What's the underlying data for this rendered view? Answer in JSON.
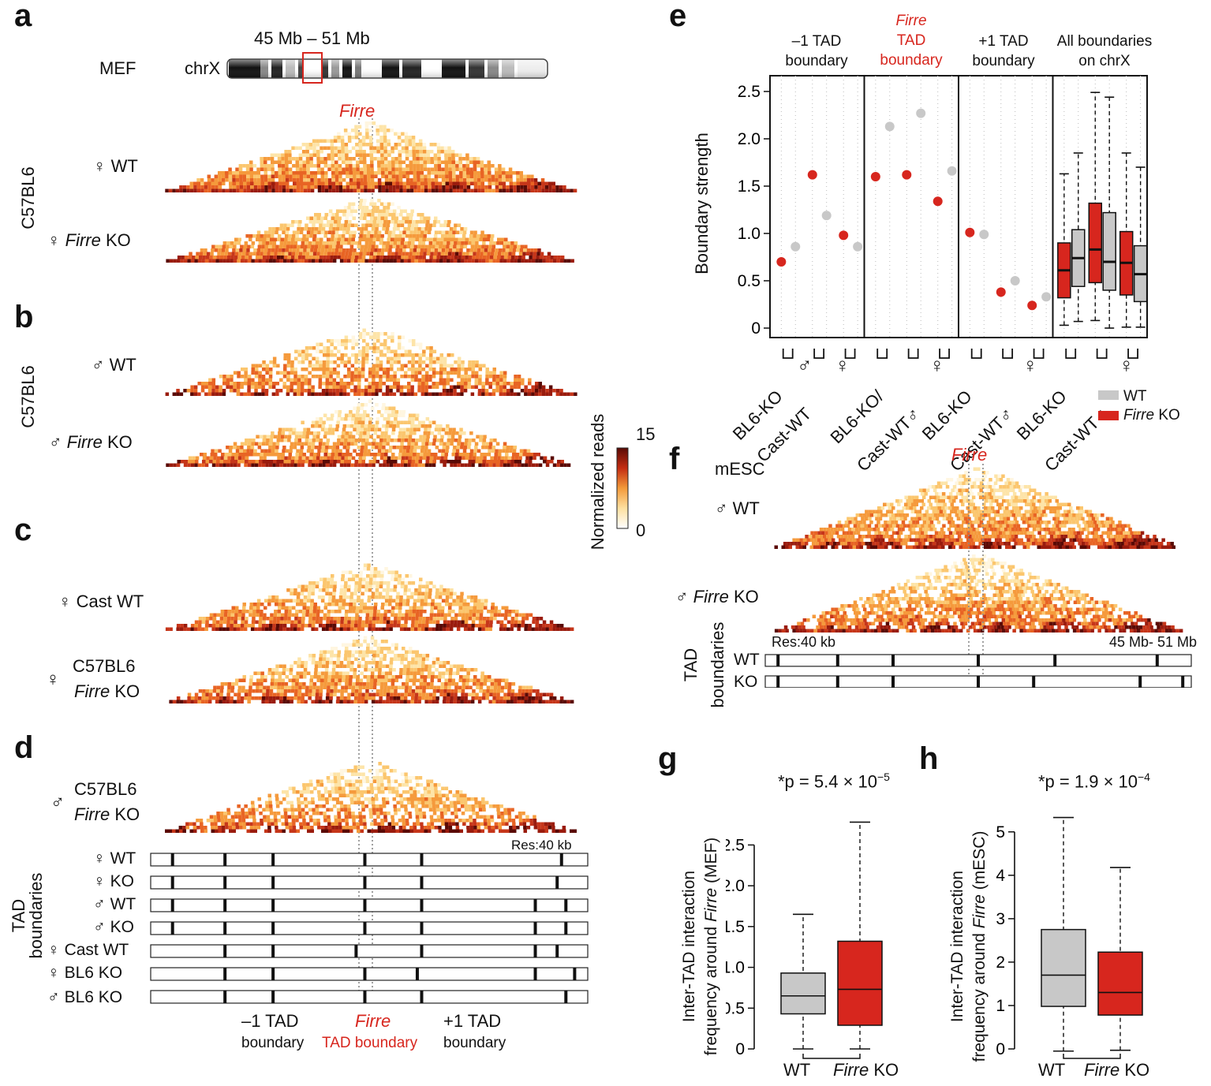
{
  "panels": {
    "a": "a",
    "b": "b",
    "c": "c",
    "d": "d",
    "e": "e",
    "f": "f",
    "g": "g",
    "h": "h"
  },
  "colors": {
    "wt": "#c8c8c8",
    "ko": "#d7261e",
    "firre": "#d7261e",
    "heat_low": "#ffffff",
    "heat_high": "#5a0a05"
  },
  "panel_a": {
    "region": "45 Mb – 51 Mb",
    "cell": "MEF",
    "chrom": "chrX",
    "firre": "Firre",
    "strain": "C57BL6",
    "wt_label": "♀ WT",
    "ko_sym": "♀",
    "ko_gene": "Firre",
    "ko_suffix": "KO"
  },
  "panel_b": {
    "strain": "C57BL6",
    "wt_label": "♂ WT",
    "ko_sym": "♂",
    "ko_gene": "Firre",
    "ko_suffix": "KO"
  },
  "colorbar": {
    "title": "Normalized reads",
    "max": "15",
    "min": "0"
  },
  "panel_c": {
    "cast_wt": "♀ Cast WT",
    "bl6_sym": "♀",
    "bl6": "C57BL6",
    "bl6_gene": "Firre",
    "bl6_suffix": "KO"
  },
  "panel_d": {
    "sym": "♂",
    "strain": "C57BL6",
    "gene": "Firre",
    "suffix": "KO",
    "res": "Res:40 kb",
    "side_label_1": "TAD",
    "side_label_2": "boundaries",
    "tracks": [
      {
        "label": "♀ WT"
      },
      {
        "label": "♀ KO"
      },
      {
        "label": "♂ WT"
      },
      {
        "label": "♂ KO"
      },
      {
        "label": "♀ Cast WT"
      },
      {
        "label": "♀ BL6 KO"
      },
      {
        "label": "♂ BL6 KO"
      }
    ],
    "bottom": {
      "minus1_a": "–1 TAD",
      "minus1_b": "boundary",
      "firre_a": "Firre",
      "firre_b": "TAD boundary",
      "plus1_a": "+1 TAD",
      "plus1_b": "boundary"
    }
  },
  "panel_e": {
    "headers": [
      {
        "l1": "–1 TAD",
        "l2": "boundary"
      },
      {
        "l0": "Firre",
        "l1": "TAD",
        "l2": "boundary"
      },
      {
        "l1": "+1 TAD",
        "l2": "boundary"
      },
      {
        "l1": "All boundaries",
        "l2": "on chrX"
      }
    ],
    "ylabel": "Boundary strength",
    "xlabels": [
      "BL6-KO",
      "Cast-WT",
      "♂",
      "♀"
    ],
    "xlabel_slash": "/",
    "legend": {
      "wt": "WT",
      "ko_gene": "Firre",
      "ko_suffix": "KO"
    }
  },
  "panel_f": {
    "cell": "mESC",
    "firre": "Firre",
    "wt_label": "♂ WT",
    "ko_sym": "♂",
    "ko_gene": "Firre",
    "ko_suffix": "KO",
    "res": "Res:40 kb",
    "range": "45 Mb- 51 Mb",
    "side_label_1": "TAD",
    "side_label_2": "boundaries",
    "track_wt": "WT",
    "track_ko": "KO"
  },
  "panel_g": {
    "pvalue": "*p = 5.4 × 10",
    "pexp": "−5",
    "ylabel_1": "Inter-TAD interaction",
    "ylabel_2": "frequency around",
    "ylabel_gene": "Firre",
    "ylabel_3": "(MEF)",
    "x_wt": "WT",
    "x_ko_gene": "Firre",
    "x_ko": "KO"
  },
  "panel_h": {
    "pvalue": "*p = 1.9 × 10",
    "pexp": "−4",
    "ylabel_1": "Inter-TAD interaction",
    "ylabel_2": "frequency around",
    "ylabel_gene": "Firre",
    "ylabel_3": "(mESC)",
    "x_wt": "WT",
    "x_ko_gene": "Firre",
    "x_ko": "KO"
  },
  "chart_data": [
    {
      "type": "scatter",
      "title": "Boundary strength (panel e)",
      "ylabel": "Boundary strength",
      "ylim": [
        0,
        2.5
      ],
      "yticks": [
        "0",
        "0.5",
        "1.0",
        "1.5",
        "2.0",
        "2.5"
      ],
      "groups": [
        "–1 TAD boundary",
        "Firre TAD boundary",
        "+1 TAD boundary"
      ],
      "categories": [
        "BL6-KO",
        "Cast-WT",
        "♂",
        "♀"
      ],
      "series": [
        {
          "name": "–1 TAD boundary",
          "points": [
            {
              "category": "BL6-KO",
              "genotype": "KO",
              "value": 0.7
            },
            {
              "category": "BL6-KO",
              "genotype": "WT",
              "value": 0.86
            },
            {
              "category": "Cast-WT",
              "genotype": "KO",
              "value": 1.62
            },
            {
              "category": "♂",
              "genotype": "WT",
              "value": 1.19
            },
            {
              "category": "♀",
              "genotype": "KO",
              "value": 0.98
            },
            {
              "category": "♀",
              "genotype": "WT",
              "value": 0.86
            }
          ]
        },
        {
          "name": "Firre TAD boundary",
          "points": [
            {
              "category": "BL6-KO",
              "genotype": "KO",
              "value": 1.6
            },
            {
              "category": "BL6-KO",
              "genotype": "WT",
              "value": 2.13
            },
            {
              "category": "Cast-WT",
              "genotype": "KO",
              "value": 1.62
            },
            {
              "category": "♂",
              "genotype": "WT",
              "value": 2.27
            },
            {
              "category": "♀",
              "genotype": "KO",
              "value": 1.34
            },
            {
              "category": "♀",
              "genotype": "WT",
              "value": 1.66
            }
          ]
        },
        {
          "name": "+1 TAD boundary",
          "points": [
            {
              "category": "BL6-KO",
              "genotype": "KO",
              "value": 1.01
            },
            {
              "category": "BL6-KO",
              "genotype": "WT",
              "value": 0.99
            },
            {
              "category": "Cast-WT",
              "genotype": "KO",
              "value": 0.38
            },
            {
              "category": "♂",
              "genotype": "WT",
              "value": 0.5
            },
            {
              "category": "♀",
              "genotype": "KO",
              "value": 0.24
            },
            {
              "category": "♀",
              "genotype": "WT",
              "value": 0.33
            }
          ]
        }
      ]
    },
    {
      "type": "box",
      "title": "All boundaries on chrX (panel e)",
      "ylim": [
        0,
        2.5
      ],
      "boxes": [
        {
          "category": "BL6-KO",
          "genotype": "KO",
          "min": 0.03,
          "q1": 0.32,
          "median": 0.61,
          "q3": 0.9,
          "max": 1.63
        },
        {
          "category": "BL6-KO",
          "genotype": "WT",
          "min": 0.07,
          "q1": 0.44,
          "median": 0.74,
          "q3": 1.04,
          "max": 1.85
        },
        {
          "category": "Cast-WT",
          "genotype": "KO",
          "min": 0.08,
          "q1": 0.48,
          "median": 0.83,
          "q3": 1.32,
          "max": 2.49
        },
        {
          "category": "Cast-WT",
          "genotype": "WT",
          "min": 0.0,
          "q1": 0.4,
          "median": 0.7,
          "q3": 1.22,
          "max": 2.44
        },
        {
          "category": "♀",
          "genotype": "KO",
          "min": 0.01,
          "q1": 0.35,
          "median": 0.69,
          "q3": 1.02,
          "max": 1.85
        },
        {
          "category": "♀",
          "genotype": "WT",
          "min": 0.01,
          "q1": 0.28,
          "median": 0.57,
          "q3": 0.87,
          "max": 1.7
        }
      ]
    },
    {
      "type": "box",
      "title": "Inter-TAD interaction frequency around Firre (MEF) (panel g)",
      "ylim": [
        0,
        2.8
      ],
      "yticks": [
        "0",
        "0.5",
        "1.0",
        "1.5",
        "2.0",
        "2.5"
      ],
      "boxes": [
        {
          "category": "WT",
          "min": 0.0,
          "q1": 0.43,
          "median": 0.65,
          "q3": 0.93,
          "max": 1.65
        },
        {
          "category": "Firre KO",
          "min": 0.0,
          "q1": 0.29,
          "median": 0.73,
          "q3": 1.32,
          "max": 2.78
        }
      ]
    },
    {
      "type": "box",
      "title": "Inter-TAD interaction frequency around Firre (mESC) (panel h)",
      "ylim": [
        0,
        5.4
      ],
      "yticks": [
        "0",
        "1",
        "2",
        "3",
        "4",
        "5"
      ],
      "boxes": [
        {
          "category": "WT",
          "min": -0.05,
          "q1": 0.98,
          "median": 1.7,
          "q3": 2.75,
          "max": 5.33
        },
        {
          "category": "Firre KO",
          "min": -0.03,
          "q1": 0.78,
          "median": 1.3,
          "q3": 2.23,
          "max": 4.18
        }
      ]
    }
  ]
}
